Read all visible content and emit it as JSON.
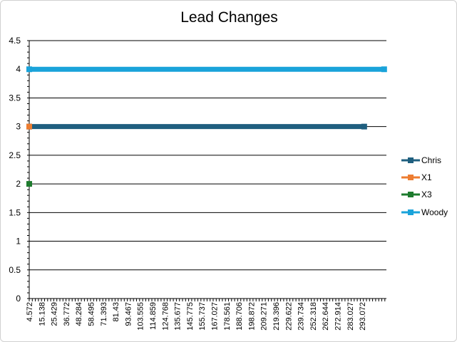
{
  "chart_data": {
    "type": "line",
    "title": "Lead Changes",
    "xlabel": "",
    "ylabel": "",
    "ylim": [
      0,
      4.5
    ],
    "yticks": [
      "0",
      "0.5",
      "1",
      "1.5",
      "2",
      "2.5",
      "3",
      "3.5",
      "4",
      "4.5"
    ],
    "grid": true,
    "legend_position": "right",
    "x_ticks": [
      "4.572",
      "15.138",
      "25.429",
      "36.772",
      "48.284",
      "58.495",
      "71.393",
      "81.43",
      "93.467",
      "103.555",
      "114.859",
      "124.768",
      "135.677",
      "145.775",
      "155.737",
      "167.027",
      "178.561",
      "188.706",
      "198.872",
      "209.271",
      "219.396",
      "229.622",
      "239.734",
      "252.318",
      "262.644",
      "272.914",
      "283.027",
      "293.072"
    ],
    "series": [
      {
        "name": "Chris",
        "color": "#1f5f7f",
        "x_start": 4.572,
        "x_end": 298.5,
        "y": 3
      },
      {
        "name": "X1",
        "color": "#ed7d31",
        "x_start": 4.572,
        "x_end": 4.572,
        "y": 3
      },
      {
        "name": "X3",
        "color": "#1e7b2e",
        "x_start": 4.572,
        "x_end": 4.572,
        "y": 2
      },
      {
        "name": "Woody",
        "color": "#1aa3da",
        "x_start": 4.572,
        "x_end": 316,
        "y": 4
      }
    ]
  }
}
